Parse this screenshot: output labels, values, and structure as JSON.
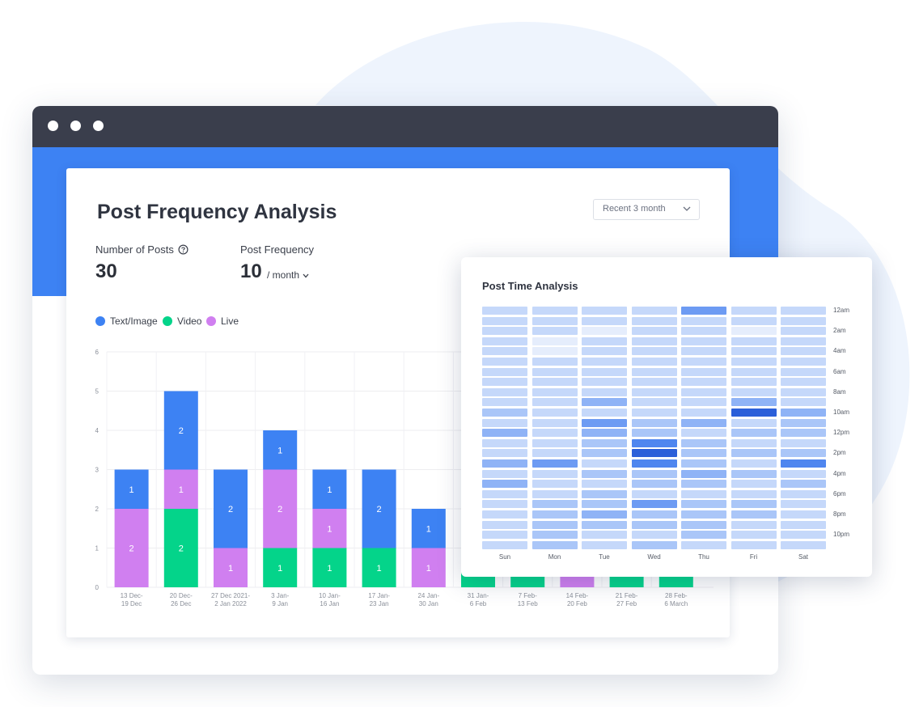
{
  "colors": {
    "text_image": "#3d82f3",
    "video": "#04d48a",
    "live": "#d07ff0",
    "accent_blue": "#3d82f3",
    "titlebar": "#3a3e4c"
  },
  "analysis": {
    "title": "Post Frequency Analysis",
    "range_select": {
      "value": "Recent 3 month"
    },
    "stats": {
      "posts_label": "Number of Posts",
      "posts_value": "30",
      "frequency_label": "Post Frequency",
      "frequency_value": "10",
      "frequency_unit": "/ month"
    },
    "legend": [
      "Text/Image",
      "Video",
      "Live"
    ]
  },
  "chart_data": [
    {
      "type": "bar",
      "stacked": true,
      "categories": [
        [
          "13 Dec-",
          "19 Dec"
        ],
        [
          "20 Dec-",
          "26 Dec"
        ],
        [
          "27 Dec 2021-",
          "2 Jan 2022"
        ],
        [
          "3 Jan-",
          "9 Jan"
        ],
        [
          "10 Jan-",
          "16 Jan"
        ],
        [
          "17 Jan-",
          "23 Jan"
        ],
        [
          "24 Jan-",
          "30 Jan"
        ],
        [
          "31 Jan-",
          "6 Feb"
        ],
        [
          "7 Feb-",
          "13 Feb"
        ],
        [
          "14 Feb-",
          "20 Feb"
        ],
        [
          "21 Feb-",
          "27 Feb"
        ],
        [
          "28 Feb-",
          "6 March"
        ]
      ],
      "series": [
        {
          "name": "Video",
          "values": [
            0,
            2,
            0,
            1,
            1,
            1,
            0,
            1,
            1,
            0,
            1,
            1
          ]
        },
        {
          "name": "Live",
          "values": [
            2,
            1,
            1,
            2,
            1,
            0,
            1,
            0,
            0,
            1,
            0,
            0
          ]
        },
        {
          "name": "Text/Image",
          "values": [
            1,
            2,
            2,
            1,
            1,
            2,
            1,
            0,
            0,
            0,
            0,
            0
          ]
        }
      ],
      "yticks": [
        0,
        1,
        2,
        3,
        4,
        5,
        6
      ],
      "ylim": [
        0,
        6
      ],
      "grid": true
    },
    {
      "type": "heatmap",
      "title": "Post Time Analysis",
      "days": [
        "Sun",
        "Mon",
        "Tue",
        "Wed",
        "Thu",
        "Fri",
        "Sat"
      ],
      "hour_labels": [
        "12am",
        "2am",
        "4am",
        "6am",
        "8am",
        "10am",
        "12pm",
        "2pm",
        "4pm",
        "6pm",
        "8pm",
        "10pm"
      ],
      "levels": [
        [
          1,
          1,
          1,
          1,
          1,
          1,
          1,
          1,
          1,
          1,
          2,
          1,
          3,
          1,
          1,
          3,
          1,
          3,
          1,
          1,
          1,
          1,
          1,
          1
        ],
        [
          1,
          1,
          1,
          0,
          0,
          1,
          1,
          1,
          1,
          1,
          1,
          1,
          1,
          1,
          1,
          4,
          1,
          1,
          1,
          2,
          2,
          2,
          2,
          2
        ],
        [
          1,
          1,
          0,
          1,
          1,
          1,
          1,
          1,
          1,
          3,
          1,
          4,
          3,
          2,
          2,
          1,
          2,
          1,
          2,
          2,
          3,
          2,
          1,
          1
        ],
        [
          1,
          1,
          1,
          1,
          1,
          1,
          1,
          1,
          1,
          1,
          1,
          2,
          2,
          5,
          6,
          5,
          2,
          2,
          1,
          4,
          2,
          2,
          1,
          2
        ],
        [
          4,
          1,
          1,
          1,
          1,
          1,
          1,
          1,
          1,
          1,
          1,
          3,
          1,
          2,
          2,
          2,
          3,
          2,
          1,
          2,
          2,
          2,
          2,
          1
        ],
        [
          1,
          1,
          0,
          1,
          1,
          1,
          1,
          1,
          1,
          3,
          6,
          1,
          2,
          1,
          2,
          1,
          2,
          1,
          1,
          2,
          2,
          1,
          1,
          1
        ],
        [
          1,
          1,
          1,
          1,
          1,
          1,
          1,
          1,
          1,
          1,
          3,
          2,
          2,
          1,
          2,
          5,
          1,
          2,
          1,
          1,
          1,
          1,
          1,
          1
        ]
      ]
    }
  ]
}
